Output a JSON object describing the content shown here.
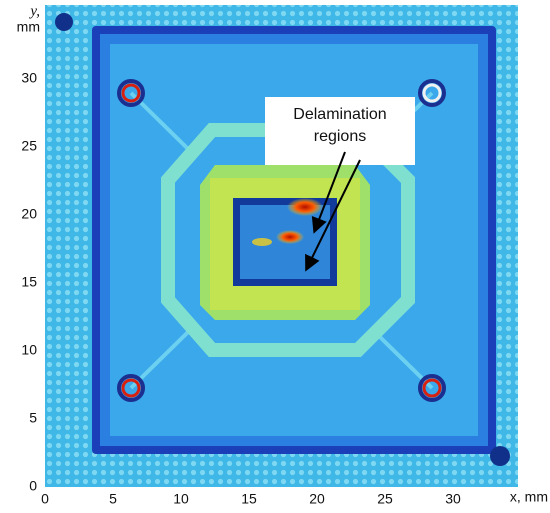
{
  "chart_data": {
    "type": "image",
    "xlabel": "x, mm",
    "ylabel": [
      "y,",
      "mm"
    ],
    "xlim": [
      0,
      35
    ],
    "ylim": [
      0,
      35
    ],
    "xticks": [
      0,
      5,
      10,
      15,
      20,
      25,
      30
    ],
    "yticks": [
      0,
      5,
      10,
      15,
      20,
      25,
      30
    ],
    "annotation": [
      "Delamination",
      "regions"
    ]
  }
}
